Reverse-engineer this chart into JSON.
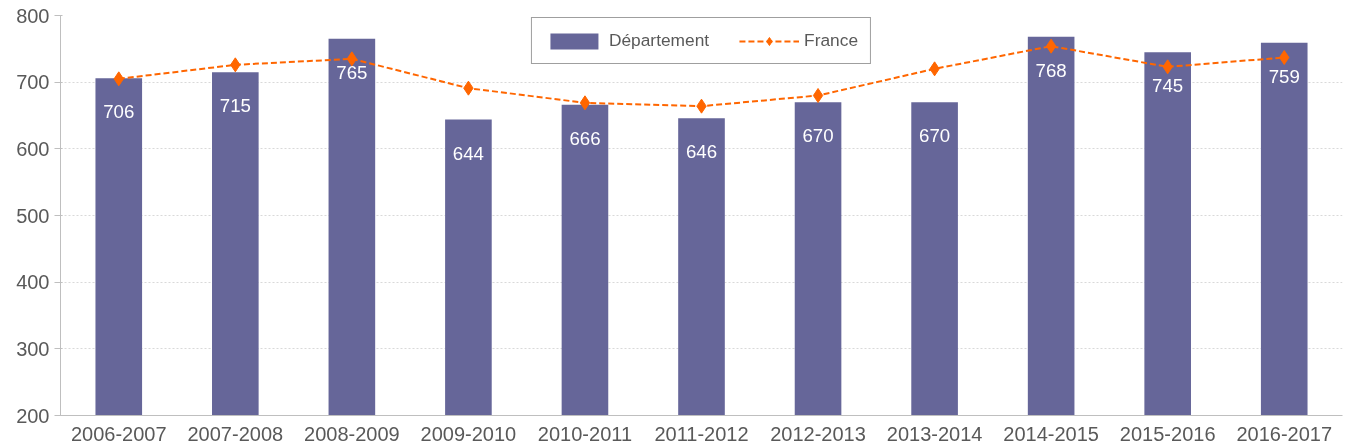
{
  "chart_data": {
    "type": "bar",
    "categories": [
      "2006-2007",
      "2007-2008",
      "2008-2009",
      "2009-2010",
      "2010-2011",
      "2011-2012",
      "2012-2013",
      "2013-2014",
      "2014-2015",
      "2015-2016",
      "2016-2017"
    ],
    "series": [
      {
        "name": "Département",
        "color": "#666699",
        "values": [
          706,
          715,
          765,
          644,
          666,
          646,
          670,
          670,
          768,
          745,
          759
        ],
        "value_labels": [
          "706",
          "715",
          "765",
          "644",
          "666",
          "646",
          "670",
          "670",
          "768",
          "745",
          "759"
        ]
      },
      {
        "name": "France",
        "type": "line",
        "color": "#ff6600",
        "line_style": "dashed",
        "marker": "diamond",
        "values": [
          705,
          726,
          735,
          691,
          669,
          664,
          680,
          720,
          754,
          723,
          737
        ]
      }
    ],
    "ylim": [
      200,
      800
    ],
    "yticks": [
      200,
      300,
      400,
      500,
      600,
      700,
      800
    ],
    "grid": "y",
    "legend": "top"
  }
}
